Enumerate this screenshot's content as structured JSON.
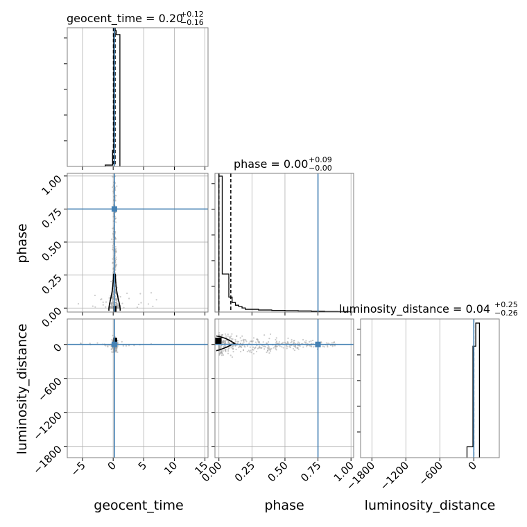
{
  "colors": {
    "truth": "#4682b4",
    "hist": "#000000",
    "grid": "#b0b0b0",
    "samples": "#a0a0a0"
  },
  "chart_data": {
    "type": "corner",
    "parameters": [
      "geocent_time",
      "phase",
      "luminosity_distance"
    ],
    "truths": {
      "geocent_time": 0.2,
      "phase": 0.75,
      "luminosity_distance": 0
    },
    "titles": [
      {
        "param": "geocent_time",
        "text": "geocent_time = 0.20",
        "sup": "+0.12",
        "sub": "−0.16"
      },
      {
        "param": "phase",
        "text": "phase = 0.00",
        "sup": "+0.09",
        "sub": "−0.00"
      },
      {
        "param": "luminosity_distance",
        "text": "luminosity_distance = 0.04",
        "sup": "+0.25",
        "sub": "−0.26"
      }
    ],
    "axis_labels": [
      "geocent_time",
      "phase",
      "luminosity_distance"
    ],
    "ranges": {
      "geocent_time": [
        -7.5,
        15.5
      ],
      "phase": [
        -0.03,
        1.02
      ],
      "luminosity_distance": [
        -2000,
        450
      ]
    },
    "ticks": {
      "geocent_time": {
        "values": [
          -5,
          0,
          5,
          10,
          15
        ],
        "labels": [
          "−5",
          "0",
          "5",
          "10",
          "15"
        ]
      },
      "phase": {
        "values": [
          0,
          0.25,
          0.5,
          0.75,
          1.0
        ],
        "labels": [
          "0.00",
          "0.25",
          "0.50",
          "0.75",
          "1.00"
        ]
      },
      "luminosity_distance": {
        "values": [
          -1800,
          -1200,
          -600,
          0
        ],
        "labels": [
          "−1800",
          "−1200",
          "−600",
          "0"
        ]
      }
    },
    "histograms": {
      "geocent_time": {
        "bins": [
          -1.3,
          -0.1,
          0.1,
          0.3,
          0.5,
          0.7,
          0.9,
          1.1
        ],
        "counts": [
          0.01,
          0.12,
          0.97,
          1.0,
          0.97,
          0.97,
          0.97
        ]
      },
      "phase": {
        "bins": [
          0.0,
          0.025,
          0.05,
          0.075,
          0.1,
          0.125,
          0.15,
          0.175,
          0.2,
          0.3,
          0.4,
          0.5,
          0.6,
          0.7,
          0.8,
          0.9,
          1.0
        ],
        "counts": [
          1.0,
          0.28,
          0.28,
          0.11,
          0.07,
          0.05,
          0.04,
          0.03,
          0.02,
          0.015,
          0.012,
          0.01,
          0.008,
          0.006,
          0.004,
          0.003
        ]
      },
      "luminosity_distance": {
        "bins": [
          -120,
          -15,
          35,
          100
        ],
        "counts": [
          0.08,
          0.82,
          0.99
        ]
      }
    },
    "quantile_lines": {
      "geocent_time": [
        0.04,
        0.2,
        0.32
      ],
      "phase": [
        0.0,
        0.0,
        0.09
      ],
      "luminosity_distance": [
        -0.22,
        0.04,
        0.29
      ]
    },
    "grid": true
  }
}
